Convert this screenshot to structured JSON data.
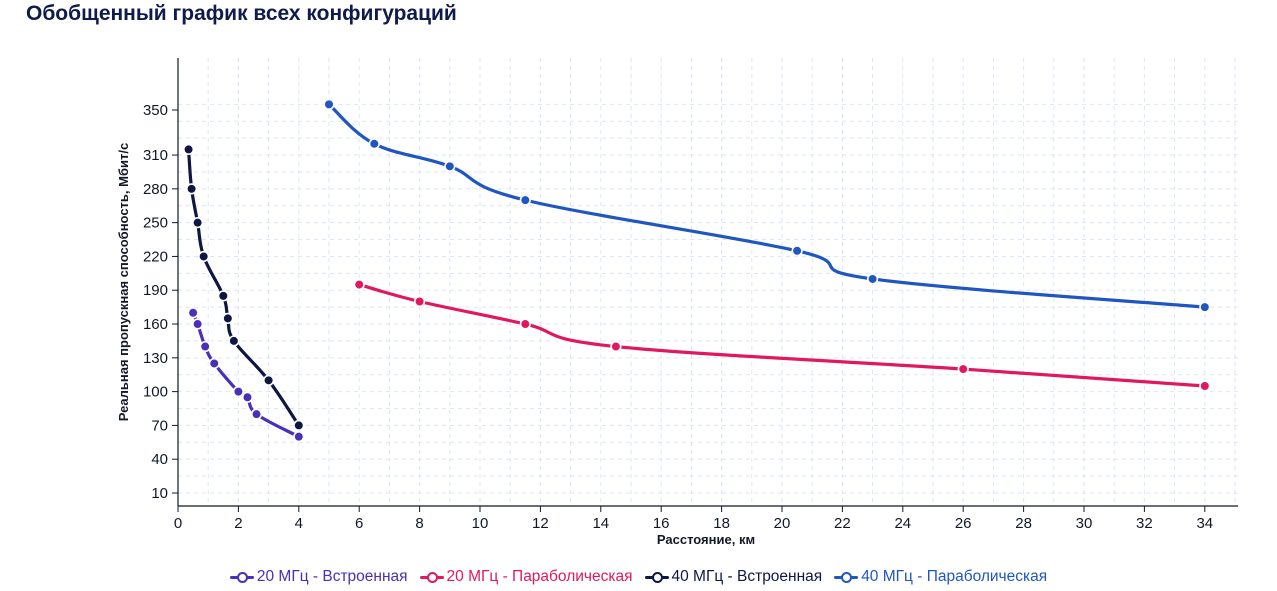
{
  "chart_data": {
    "type": "line",
    "title": "Обобщенный график всех конфигураций",
    "xlabel": "Расстояние, км",
    "ylabel": "Реальная пропускная способность, Мбит/с",
    "xlim": [
      0,
      35
    ],
    "ylim": [
      0,
      355
    ],
    "x_ticks": [
      0,
      2,
      4,
      6,
      8,
      10,
      12,
      14,
      16,
      18,
      20,
      22,
      24,
      26,
      28,
      30,
      32,
      34
    ],
    "y_ticks": [
      10,
      40,
      70,
      100,
      130,
      160,
      190,
      220,
      250,
      280,
      310,
      350
    ],
    "grid": true,
    "legend_position": "bottom",
    "series": [
      {
        "name": "20 МГц - Встроенная",
        "color": "#4a2fb8",
        "points": [
          [
            0.5,
            170
          ],
          [
            0.65,
            160
          ],
          [
            0.9,
            140
          ],
          [
            1.2,
            125
          ],
          [
            2.0,
            100
          ],
          [
            2.3,
            95
          ],
          [
            2.6,
            80
          ],
          [
            4.0,
            60
          ]
        ]
      },
      {
        "name": "20 МГц - Параболическая",
        "color": "#e0185f",
        "points": [
          [
            6,
            195
          ],
          [
            8,
            180
          ],
          [
            11.5,
            160
          ],
          [
            14.5,
            140
          ],
          [
            26,
            120
          ],
          [
            34,
            105
          ]
        ]
      },
      {
        "name": "40 МГц - Встроенная",
        "color": "#0d1742",
        "points": [
          [
            0.35,
            315
          ],
          [
            0.45,
            280
          ],
          [
            0.65,
            250
          ],
          [
            0.85,
            220
          ],
          [
            1.5,
            185
          ],
          [
            1.65,
            165
          ],
          [
            1.85,
            145
          ],
          [
            3.0,
            110
          ],
          [
            4.0,
            70
          ]
        ]
      },
      {
        "name": "40 МГц - Параболическая",
        "color": "#1f56c2",
        "points": [
          [
            5,
            355
          ],
          [
            6.5,
            320
          ],
          [
            9,
            300
          ],
          [
            11.5,
            270
          ],
          [
            20.5,
            225
          ],
          [
            23,
            200
          ],
          [
            34,
            175
          ]
        ]
      }
    ]
  }
}
